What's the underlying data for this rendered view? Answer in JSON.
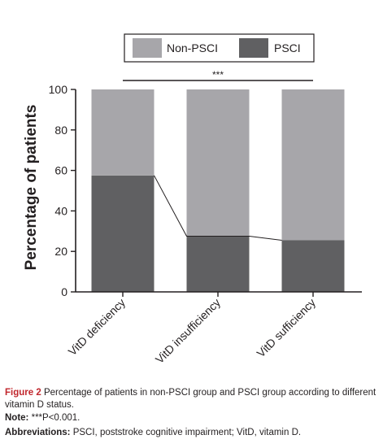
{
  "chart_data": {
    "type": "bar",
    "stacked": true,
    "categories": [
      "VitD deficiency",
      "VitD insufficiency",
      "VitD sufficiency"
    ],
    "series": [
      {
        "name": "PSCI",
        "values": [
          57.5,
          27.5,
          25.5
        ],
        "color": "#606062"
      },
      {
        "name": "Non-PSCI",
        "values": [
          42.5,
          72.5,
          74.5
        ],
        "color": "#a7a6aa"
      }
    ],
    "ylabel": "Percentage of patients",
    "xlabel": "",
    "ylim": [
      0,
      100
    ],
    "yticks": [
      0,
      20,
      40,
      60,
      80,
      100
    ],
    "legend_position": "top",
    "significance": "***",
    "grid": false
  },
  "caption": {
    "figure_label": "Figure 2",
    "figure_text": "Percentage of patients in non-PSCI group and PSCI group according to different vitamin D status.",
    "note_label": "Note:",
    "note_text": "***P<0.001.",
    "abbreviations_label": "Abbreviations:",
    "abbreviations_text": "PSCI, poststroke cognitive impairment; VitD, vitamin D."
  }
}
